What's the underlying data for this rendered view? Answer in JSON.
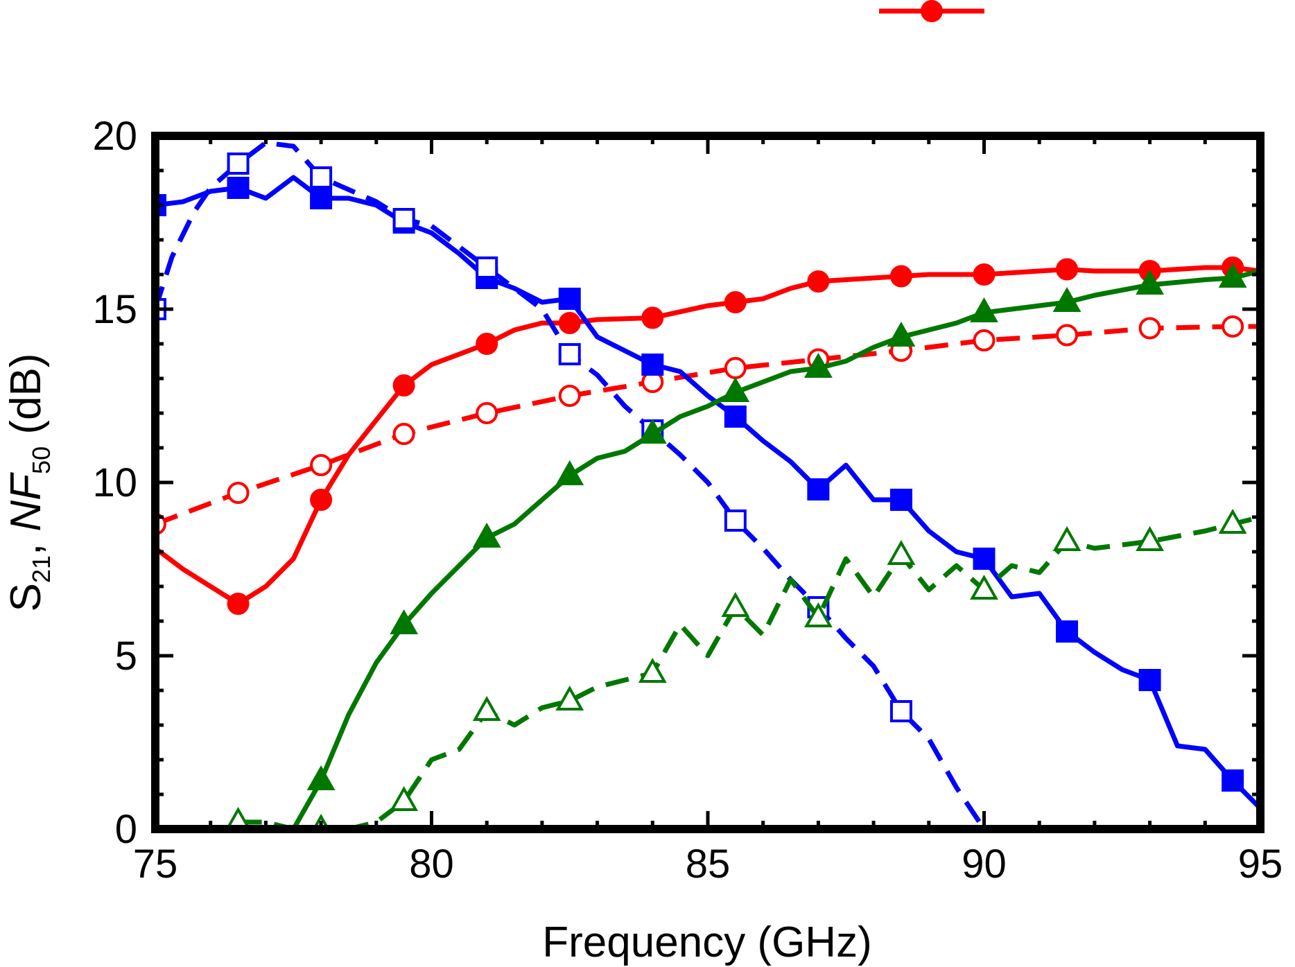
{
  "chart_data": {
    "type": "line",
    "title": "",
    "xlabel": "Frequency (GHz)",
    "ylabel": {
      "prefix": "S",
      "prefix_sub": "21",
      "sep": ", ",
      "var": "NF",
      "var_sub": "50",
      "unit": " (dB)"
    },
    "xlim": [
      75,
      95
    ],
    "ylim": [
      0,
      20
    ],
    "xticks": [
      75,
      80,
      85,
      90,
      95
    ],
    "yticks": [
      0,
      5,
      10,
      15,
      20
    ],
    "xtick_labels": [
      "75",
      "80",
      "85",
      "90",
      "95"
    ],
    "ytick_labels": [
      "0",
      "5",
      "10",
      "15",
      "20"
    ],
    "x_minor_step": 1,
    "y_minor_step": 1,
    "legend": {
      "position": "top",
      "entries": [
        {
          "series_index": 0,
          "label": ""
        }
      ]
    },
    "series": [
      {
        "name": "red-solid-filled-circle",
        "color": "#ff0000",
        "dash": "solid",
        "marker": "circle",
        "filled": true,
        "line_points": [
          [
            75,
            8.1
          ],
          [
            75.5,
            7.5
          ],
          [
            76,
            7.0
          ],
          [
            76.5,
            6.5
          ],
          [
            77,
            7.0
          ],
          [
            77.5,
            7.8
          ],
          [
            78,
            9.5
          ],
          [
            78.5,
            10.8
          ],
          [
            79,
            11.8
          ],
          [
            79.5,
            12.8
          ],
          [
            80,
            13.4
          ],
          [
            80.5,
            13.7
          ],
          [
            81,
            14.0
          ],
          [
            81.5,
            14.4
          ],
          [
            82,
            14.6
          ],
          [
            82.5,
            14.6
          ],
          [
            83,
            14.7
          ],
          [
            84,
            14.75
          ],
          [
            85,
            15.1
          ],
          [
            85.5,
            15.2
          ],
          [
            86,
            15.3
          ],
          [
            86.5,
            15.6
          ],
          [
            87,
            15.8
          ],
          [
            88,
            15.9
          ],
          [
            88.5,
            15.95
          ],
          [
            89,
            16.0
          ],
          [
            90,
            16.0
          ],
          [
            91,
            16.1
          ],
          [
            91.5,
            16.15
          ],
          [
            92,
            16.1
          ],
          [
            93,
            16.1
          ],
          [
            94,
            16.2
          ],
          [
            94.5,
            16.2
          ],
          [
            95,
            16.1
          ]
        ],
        "markers": [
          [
            76.5,
            6.5
          ],
          [
            78,
            9.5
          ],
          [
            79.5,
            12.8
          ],
          [
            81,
            14.0
          ],
          [
            82.5,
            14.6
          ],
          [
            84,
            14.75
          ],
          [
            85.5,
            15.2
          ],
          [
            87,
            15.8
          ],
          [
            88.5,
            15.95
          ],
          [
            90,
            16.0
          ],
          [
            91.5,
            16.15
          ],
          [
            93,
            16.1
          ],
          [
            94.5,
            16.2
          ]
        ]
      },
      {
        "name": "red-dashed-open-circle",
        "color": "#ff0000",
        "dash": "dashed",
        "marker": "circle",
        "filled": false,
        "line_points": [
          [
            75,
            8.8
          ],
          [
            76.5,
            9.7
          ],
          [
            78,
            10.5
          ],
          [
            79.5,
            11.4
          ],
          [
            81,
            12.0
          ],
          [
            82.5,
            12.5
          ],
          [
            84,
            12.9
          ],
          [
            85.5,
            13.3
          ],
          [
            87,
            13.55
          ],
          [
            88.5,
            13.8
          ],
          [
            90,
            14.1
          ],
          [
            91.5,
            14.25
          ],
          [
            93,
            14.45
          ],
          [
            94.5,
            14.5
          ],
          [
            95,
            14.5
          ]
        ],
        "markers": [
          [
            75,
            8.8
          ],
          [
            76.5,
            9.7
          ],
          [
            78,
            10.5
          ],
          [
            79.5,
            11.4
          ],
          [
            81,
            12.0
          ],
          [
            82.5,
            12.5
          ],
          [
            84,
            12.9
          ],
          [
            85.5,
            13.3
          ],
          [
            87,
            13.55
          ],
          [
            88.5,
            13.8
          ],
          [
            90,
            14.1
          ],
          [
            91.5,
            14.25
          ],
          [
            93,
            14.45
          ],
          [
            94.5,
            14.5
          ]
        ]
      },
      {
        "name": "blue-solid-filled-square",
        "color": "#0000ff",
        "dash": "solid",
        "marker": "square",
        "filled": true,
        "line_points": [
          [
            75,
            18.0
          ],
          [
            75.5,
            18.1
          ],
          [
            76,
            18.4
          ],
          [
            76.5,
            18.5
          ],
          [
            77,
            18.2
          ],
          [
            77.5,
            18.8
          ],
          [
            78,
            18.2
          ],
          [
            78.5,
            18.2
          ],
          [
            79,
            18.0
          ],
          [
            79.5,
            17.5
          ],
          [
            80,
            17.2
          ],
          [
            80.5,
            16.6
          ],
          [
            81,
            15.9
          ],
          [
            81.5,
            15.6
          ],
          [
            82,
            15.2
          ],
          [
            82.5,
            15.3
          ],
          [
            83,
            14.2
          ],
          [
            83.5,
            13.8
          ],
          [
            84,
            13.4
          ],
          [
            84.5,
            13.2
          ],
          [
            85,
            12.5
          ],
          [
            85.5,
            11.9
          ],
          [
            86,
            11.2
          ],
          [
            86.5,
            10.6
          ],
          [
            87,
            9.8
          ],
          [
            87.5,
            10.5
          ],
          [
            88,
            9.5
          ],
          [
            88.5,
            9.5
          ],
          [
            89,
            8.6
          ],
          [
            89.5,
            8.0
          ],
          [
            90,
            7.8
          ],
          [
            90.5,
            6.7
          ],
          [
            91,
            6.8
          ],
          [
            91.5,
            5.7
          ],
          [
            92,
            5.1
          ],
          [
            92.5,
            4.6
          ],
          [
            93,
            4.3
          ],
          [
            93.5,
            2.4
          ],
          [
            94,
            2.3
          ],
          [
            94.5,
            1.4
          ],
          [
            95,
            0.6
          ]
        ],
        "markers": [
          [
            75,
            18.0
          ],
          [
            76.5,
            18.5
          ],
          [
            78,
            18.2
          ],
          [
            79.5,
            17.5
          ],
          [
            81,
            15.9
          ],
          [
            82.5,
            15.3
          ],
          [
            84,
            13.4
          ],
          [
            85.5,
            11.9
          ],
          [
            87,
            9.8
          ],
          [
            88.5,
            9.5
          ],
          [
            90,
            7.8
          ],
          [
            91.5,
            5.7
          ],
          [
            93,
            4.3
          ],
          [
            94.5,
            1.4
          ]
        ]
      },
      {
        "name": "blue-dashed-open-square",
        "color": "#0000ff",
        "dash": "dashed",
        "marker": "square",
        "filled": false,
        "line_points": [
          [
            75,
            15.0
          ],
          [
            75.3,
            16.5
          ],
          [
            75.7,
            17.8
          ],
          [
            76,
            18.5
          ],
          [
            76.5,
            19.2
          ],
          [
            77,
            19.8
          ],
          [
            77.5,
            19.7
          ],
          [
            78,
            18.8
          ],
          [
            79,
            18.1
          ],
          [
            79.5,
            17.6
          ],
          [
            80,
            17.4
          ],
          [
            80.5,
            16.8
          ],
          [
            81,
            16.2
          ],
          [
            81.5,
            15.6
          ],
          [
            82,
            15.0
          ],
          [
            82.5,
            13.7
          ],
          [
            83,
            13.1
          ],
          [
            83.5,
            12.2
          ],
          [
            84,
            11.5
          ],
          [
            84.5,
            10.8
          ],
          [
            85,
            10.0
          ],
          [
            85.5,
            8.9
          ],
          [
            86,
            8.1
          ],
          [
            86.5,
            7.2
          ],
          [
            87,
            6.4
          ],
          [
            87.5,
            5.5
          ],
          [
            88,
            4.7
          ],
          [
            88.5,
            3.4
          ],
          [
            89,
            2.6
          ],
          [
            89.5,
            1.2
          ],
          [
            90,
            0.0
          ]
        ],
        "markers": [
          [
            75,
            15.0
          ],
          [
            76.5,
            19.2
          ],
          [
            78,
            18.8
          ],
          [
            79.5,
            17.6
          ],
          [
            81,
            16.2
          ],
          [
            82.5,
            13.7
          ],
          [
            84,
            11.5
          ],
          [
            85.5,
            8.9
          ],
          [
            87,
            6.4
          ],
          [
            88.5,
            3.4
          ]
        ]
      },
      {
        "name": "green-solid-filled-triangle",
        "color": "#007800",
        "dash": "solid",
        "marker": "triangle",
        "filled": true,
        "line_points": [
          [
            77.5,
            0.0
          ],
          [
            78,
            1.4
          ],
          [
            78.5,
            3.3
          ],
          [
            79,
            4.8
          ],
          [
            79.5,
            5.9
          ],
          [
            80,
            6.8
          ],
          [
            80.5,
            7.6
          ],
          [
            81,
            8.4
          ],
          [
            81.5,
            8.8
          ],
          [
            82,
            9.5
          ],
          [
            82.5,
            10.2
          ],
          [
            83,
            10.7
          ],
          [
            83.5,
            10.9
          ],
          [
            84,
            11.4
          ],
          [
            84.5,
            11.9
          ],
          [
            85,
            12.2
          ],
          [
            85.5,
            12.6
          ],
          [
            86,
            12.9
          ],
          [
            86.5,
            13.2
          ],
          [
            87,
            13.3
          ],
          [
            87.5,
            13.5
          ],
          [
            88,
            13.9
          ],
          [
            88.5,
            14.2
          ],
          [
            89,
            14.4
          ],
          [
            89.5,
            14.6
          ],
          [
            90,
            14.9
          ],
          [
            90.5,
            15.0
          ],
          [
            91,
            15.1
          ],
          [
            91.5,
            15.2
          ],
          [
            92,
            15.4
          ],
          [
            93,
            15.7
          ],
          [
            94,
            15.85
          ],
          [
            94.5,
            15.9
          ],
          [
            95,
            16.1
          ]
        ],
        "markers": [
          [
            78,
            1.4
          ],
          [
            79.5,
            5.9
          ],
          [
            81,
            8.4
          ],
          [
            82.5,
            10.2
          ],
          [
            84,
            11.4
          ],
          [
            85.5,
            12.6
          ],
          [
            87,
            13.3
          ],
          [
            88.5,
            14.2
          ],
          [
            90,
            14.9
          ],
          [
            91.5,
            15.2
          ],
          [
            93,
            15.7
          ],
          [
            94.5,
            15.9
          ]
        ]
      },
      {
        "name": "green-dashed-open-triangle",
        "color": "#007800",
        "dash": "dashed",
        "marker": "triangle",
        "filled": false,
        "line_points": [
          [
            76.5,
            0.2
          ],
          [
            77,
            0.2
          ],
          [
            77.5,
            0.0
          ],
          [
            78,
            0.0
          ],
          [
            78.5,
            0.0
          ],
          [
            79,
            0.2
          ],
          [
            79.5,
            0.8
          ],
          [
            80,
            2.0
          ],
          [
            80.5,
            2.3
          ],
          [
            81,
            3.4
          ],
          [
            81.5,
            3.0
          ],
          [
            82,
            3.5
          ],
          [
            82.5,
            3.7
          ],
          [
            83,
            4.1
          ],
          [
            83.5,
            4.3
          ],
          [
            84,
            4.5
          ],
          [
            84.5,
            5.9
          ],
          [
            85,
            5.0
          ],
          [
            85.5,
            6.4
          ],
          [
            86,
            5.6
          ],
          [
            86.5,
            7.2
          ],
          [
            87,
            6.1
          ],
          [
            87.5,
            7.8
          ],
          [
            88,
            6.7
          ],
          [
            88.5,
            7.9
          ],
          [
            89,
            6.9
          ],
          [
            89.5,
            7.6
          ],
          [
            90,
            6.9
          ],
          [
            90.5,
            7.6
          ],
          [
            91,
            7.4
          ],
          [
            91.5,
            8.3
          ],
          [
            92,
            8.1
          ],
          [
            93,
            8.3
          ],
          [
            94,
            8.6
          ],
          [
            94.5,
            8.8
          ],
          [
            95,
            9.0
          ]
        ],
        "markers": [
          [
            76.5,
            0.2
          ],
          [
            78,
            0.0
          ],
          [
            79.5,
            0.8
          ],
          [
            81,
            3.4
          ],
          [
            82.5,
            3.7
          ],
          [
            84,
            4.5
          ],
          [
            85.5,
            6.4
          ],
          [
            87,
            6.1
          ],
          [
            88.5,
            7.9
          ],
          [
            90,
            6.9
          ],
          [
            91.5,
            8.3
          ],
          [
            93,
            8.3
          ],
          [
            94.5,
            8.8
          ]
        ]
      }
    ]
  }
}
